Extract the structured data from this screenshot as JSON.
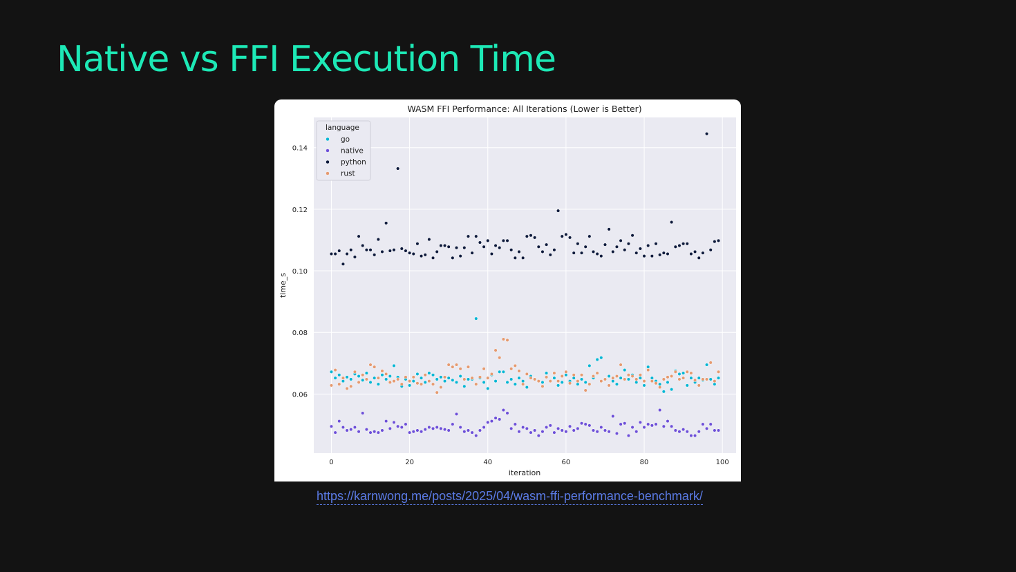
{
  "slide": {
    "title": "Native vs FFI Execution Time",
    "link": "https://karnwong.me/posts/2025/04/wasm-ffi-performance-benchmark/"
  },
  "colors": {
    "background": "#131313",
    "title": "#1de9b6",
    "link": "#5b7be6",
    "plot_bg": "#eaeaf2"
  },
  "chart_data": {
    "type": "scatter",
    "title": "WASM FFI Performance: All Iterations (Lower is Better)",
    "xlabel": "iteration",
    "ylabel": "time_s",
    "xlim": [
      -4.5,
      103.5
    ],
    "ylim": [
      0.0408,
      0.1498
    ],
    "xticks": [
      0,
      20,
      40,
      60,
      80,
      100
    ],
    "yticks": [
      0.06,
      0.08,
      0.1,
      0.12,
      0.14
    ],
    "grid": true,
    "legend": {
      "title": "language",
      "position": "top-left"
    },
    "series": [
      {
        "name": "go",
        "color": "#06b6d4",
        "x": [
          0,
          1,
          2,
          3,
          4,
          5,
          6,
          7,
          8,
          9,
          10,
          11,
          12,
          13,
          14,
          15,
          16,
          17,
          18,
          19,
          20,
          21,
          22,
          23,
          24,
          25,
          26,
          27,
          28,
          29,
          30,
          31,
          32,
          33,
          34,
          35,
          36,
          37,
          38,
          39,
          40,
          41,
          42,
          43,
          44,
          45,
          46,
          47,
          48,
          49,
          50,
          51,
          52,
          53,
          54,
          55,
          56,
          57,
          58,
          59,
          60,
          61,
          62,
          63,
          64,
          65,
          66,
          67,
          68,
          69,
          70,
          71,
          72,
          73,
          74,
          75,
          76,
          77,
          78,
          79,
          80,
          81,
          82,
          83,
          84,
          85,
          86,
          87,
          88,
          89,
          90,
          91,
          92,
          93,
          94,
          95,
          96,
          97,
          98,
          99
        ],
        "y": [
          0.0672,
          0.0652,
          0.0662,
          0.0642,
          0.0655,
          0.0648,
          0.0665,
          0.0658,
          0.0645,
          0.0668,
          0.0638,
          0.0652,
          0.0632,
          0.0662,
          0.0648,
          0.0658,
          0.0692,
          0.0655,
          0.0625,
          0.0648,
          0.0628,
          0.0642,
          0.0665,
          0.0652,
          0.0638,
          0.0668,
          0.0662,
          0.0648,
          0.0655,
          0.0642,
          0.0652,
          0.0645,
          0.0638,
          0.0658,
          0.0625,
          0.0648,
          0.0648,
          0.0845,
          0.0652,
          0.0638,
          0.0618,
          0.0662,
          0.0642,
          0.0672,
          0.0672,
          0.0638,
          0.0648,
          0.0632,
          0.0652,
          0.0642,
          0.0622,
          0.0658,
          0.0648,
          0.0642,
          0.0638,
          0.0668,
          0.0642,
          0.0652,
          0.0628,
          0.0638,
          0.0662,
          0.0642,
          0.0652,
          0.0632,
          0.0648,
          0.0638,
          0.0692,
          0.0652,
          0.0712,
          0.0718,
          0.0648,
          0.0658,
          0.0642,
          0.0632,
          0.0652,
          0.0678,
          0.0648,
          0.0662,
          0.0638,
          0.0652,
          0.0628,
          0.0688,
          0.0652,
          0.0642,
          0.0632,
          0.0608,
          0.0638,
          0.0615,
          0.0675,
          0.0665,
          0.0668,
          0.0628,
          0.0652,
          0.0638,
          0.0652,
          0.0645,
          0.0695,
          0.0648,
          0.0632,
          0.0652
        ]
      },
      {
        "name": "native",
        "color": "#6d4fd8",
        "x": [
          0,
          1,
          2,
          3,
          4,
          5,
          6,
          7,
          8,
          9,
          10,
          11,
          12,
          13,
          14,
          15,
          16,
          17,
          18,
          19,
          20,
          21,
          22,
          23,
          24,
          25,
          26,
          27,
          28,
          29,
          30,
          31,
          32,
          33,
          34,
          35,
          36,
          37,
          38,
          39,
          40,
          41,
          42,
          43,
          44,
          45,
          46,
          47,
          48,
          49,
          50,
          51,
          52,
          53,
          54,
          55,
          56,
          57,
          58,
          59,
          60,
          61,
          62,
          63,
          64,
          65,
          66,
          67,
          68,
          69,
          70,
          71,
          72,
          73,
          74,
          75,
          76,
          77,
          78,
          79,
          80,
          81,
          82,
          83,
          84,
          85,
          86,
          87,
          88,
          89,
          90,
          91,
          92,
          93,
          94,
          95,
          96,
          97,
          98,
          99
        ],
        "y": [
          0.0495,
          0.0475,
          0.0512,
          0.0492,
          0.0482,
          0.0485,
          0.0492,
          0.0478,
          0.0538,
          0.0485,
          0.0475,
          0.0478,
          0.0475,
          0.0482,
          0.0512,
          0.0488,
          0.0508,
          0.0495,
          0.0492,
          0.0502,
          0.0475,
          0.0478,
          0.0482,
          0.0478,
          0.0485,
          0.0492,
          0.0488,
          0.0492,
          0.0488,
          0.0485,
          0.0482,
          0.0502,
          0.0535,
          0.0492,
          0.0478,
          0.0482,
          0.0475,
          0.0465,
          0.0482,
          0.0492,
          0.0508,
          0.0512,
          0.0522,
          0.0518,
          0.0548,
          0.0538,
          0.0488,
          0.0502,
          0.0478,
          0.0492,
          0.0488,
          0.0475,
          0.0482,
          0.0465,
          0.0478,
          0.0492,
          0.0498,
          0.0475,
          0.0488,
          0.0482,
          0.0478,
          0.0495,
          0.0482,
          0.0488,
          0.0505,
          0.0502,
          0.0498,
          0.0482,
          0.0478,
          0.0492,
          0.0482,
          0.0478,
          0.0528,
          0.0472,
          0.0502,
          0.0505,
          0.0465,
          0.0492,
          0.0478,
          0.0508,
          0.0492,
          0.0502,
          0.0498,
          0.0502,
          0.0548,
          0.0495,
          0.0512,
          0.0495,
          0.0482,
          0.0478,
          0.0485,
          0.0478,
          0.0465,
          0.0465,
          0.0478,
          0.0502,
          0.0488,
          0.0502,
          0.0482,
          0.0482
        ]
      },
      {
        "name": "python",
        "color": "#0e1a3c",
        "x": [
          0,
          1,
          2,
          3,
          4,
          5,
          6,
          7,
          8,
          9,
          10,
          11,
          12,
          13,
          14,
          15,
          16,
          17,
          18,
          19,
          20,
          21,
          22,
          23,
          24,
          25,
          26,
          27,
          28,
          29,
          30,
          31,
          32,
          33,
          34,
          35,
          36,
          37,
          38,
          39,
          40,
          41,
          42,
          43,
          44,
          45,
          46,
          47,
          48,
          49,
          50,
          51,
          52,
          53,
          54,
          55,
          56,
          57,
          58,
          59,
          60,
          61,
          62,
          63,
          64,
          65,
          66,
          67,
          68,
          69,
          70,
          71,
          72,
          73,
          74,
          75,
          76,
          77,
          78,
          79,
          80,
          81,
          82,
          83,
          84,
          85,
          86,
          87,
          88,
          89,
          90,
          91,
          92,
          93,
          94,
          95,
          96,
          97,
          98,
          99
        ],
        "y": [
          0.1055,
          0.1055,
          0.1065,
          0.1022,
          0.1055,
          0.1068,
          0.1045,
          0.1112,
          0.1082,
          0.1068,
          0.1068,
          0.1052,
          0.1102,
          0.1062,
          0.1155,
          0.1065,
          0.1068,
          0.1332,
          0.1072,
          0.1065,
          0.1058,
          0.1055,
          0.1088,
          0.1048,
          0.1052,
          0.1102,
          0.1042,
          0.1062,
          0.1082,
          0.1082,
          0.1078,
          0.1042,
          0.1075,
          0.1048,
          0.1075,
          0.1112,
          0.1058,
          0.1112,
          0.1092,
          0.1078,
          0.1098,
          0.1055,
          0.1082,
          0.1075,
          0.1098,
          0.1098,
          0.1068,
          0.1042,
          0.1062,
          0.1042,
          0.1112,
          0.1115,
          0.1108,
          0.1078,
          0.1062,
          0.1085,
          0.1052,
          0.1068,
          0.1195,
          0.1112,
          0.1118,
          0.1108,
          0.1058,
          0.1088,
          0.1058,
          0.1078,
          0.1112,
          0.1062,
          0.1055,
          0.1048,
          0.1085,
          0.1135,
          0.1062,
          0.1078,
          0.1098,
          0.1068,
          0.1088,
          0.1115,
          0.1058,
          0.1072,
          0.1048,
          0.1082,
          0.1048,
          0.1088,
          0.1052,
          0.1058,
          0.1055,
          0.1158,
          0.1078,
          0.1082,
          0.1088,
          0.1088,
          0.1055,
          0.1062,
          0.1042,
          0.1058,
          0.1445,
          0.1068,
          0.1095,
          0.1098
        ]
      },
      {
        "name": "rust",
        "color": "#e59a70",
        "x": [
          0,
          1,
          2,
          3,
          4,
          5,
          6,
          7,
          8,
          9,
          10,
          11,
          12,
          13,
          14,
          15,
          16,
          17,
          18,
          19,
          20,
          21,
          22,
          23,
          24,
          25,
          26,
          27,
          28,
          29,
          30,
          31,
          32,
          33,
          34,
          35,
          36,
          37,
          38,
          39,
          40,
          41,
          42,
          43,
          44,
          45,
          46,
          47,
          48,
          49,
          50,
          51,
          52,
          53,
          54,
          55,
          56,
          57,
          58,
          59,
          60,
          61,
          62,
          63,
          64,
          65,
          66,
          67,
          68,
          69,
          70,
          71,
          72,
          73,
          74,
          75,
          76,
          77,
          78,
          79,
          80,
          81,
          82,
          83,
          84,
          85,
          86,
          87,
          88,
          89,
          90,
          91,
          92,
          93,
          94,
          95,
          96,
          97,
          98,
          99
        ],
        "y": [
          0.0628,
          0.0678,
          0.0632,
          0.0652,
          0.0618,
          0.0625,
          0.0672,
          0.0638,
          0.0662,
          0.0648,
          0.0695,
          0.0688,
          0.0652,
          0.0675,
          0.0665,
          0.0638,
          0.0642,
          0.0648,
          0.0632,
          0.0655,
          0.0642,
          0.0655,
          0.0635,
          0.0632,
          0.0662,
          0.0642,
          0.0632,
          0.0605,
          0.0622,
          0.0655,
          0.0695,
          0.0688,
          0.0695,
          0.0682,
          0.0648,
          0.0688,
          0.0652,
          0.0632,
          0.0655,
          0.0682,
          0.0652,
          0.0665,
          0.0742,
          0.0718,
          0.0778,
          0.0775,
          0.0682,
          0.0692,
          0.0675,
          0.0632,
          0.0665,
          0.0652,
          0.0648,
          0.0642,
          0.0625,
          0.0655,
          0.0642,
          0.0668,
          0.0642,
          0.0658,
          0.0672,
          0.0635,
          0.0662,
          0.0642,
          0.0662,
          0.0612,
          0.0632,
          0.0658,
          0.0668,
          0.0642,
          0.0648,
          0.0628,
          0.0652,
          0.0658,
          0.0695,
          0.0648,
          0.0662,
          0.0658,
          0.0648,
          0.0662,
          0.0642,
          0.0678,
          0.0642,
          0.0635,
          0.0622,
          0.0648,
          0.0655,
          0.0658,
          0.0672,
          0.0648,
          0.0652,
          0.0672,
          0.0668,
          0.0645,
          0.0628,
          0.0648,
          0.0648,
          0.0702,
          0.0642,
          0.0672
        ]
      }
    ]
  }
}
